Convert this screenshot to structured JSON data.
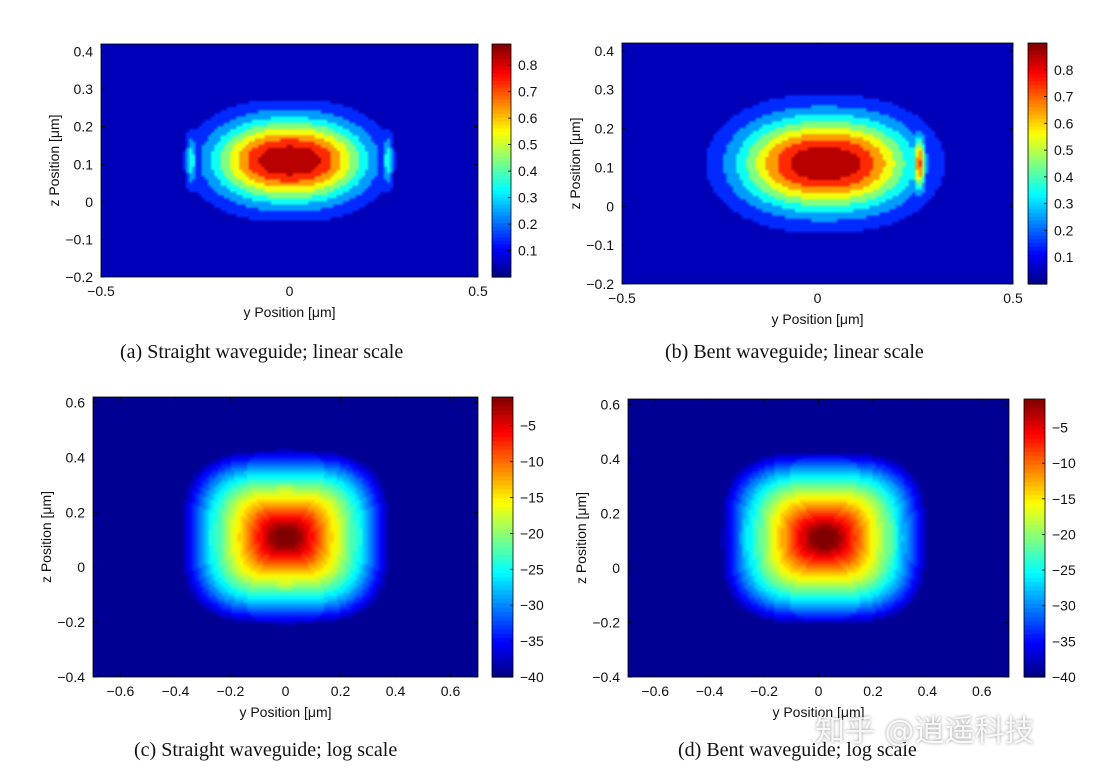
{
  "figure": {
    "watermark": "知乎 @逍遥科技",
    "panels": [
      {
        "id": "a",
        "caption": "(a) Straight waveguide; linear scale"
      },
      {
        "id": "b",
        "caption": "(b) Bent waveguide; linear scale"
      },
      {
        "id": "c",
        "caption": "(c) Straight waveguide; log scale"
      },
      {
        "id": "d",
        "caption": "(d) Bent waveguide; log scale"
      }
    ]
  },
  "chart_data": [
    {
      "type": "heatmap",
      "subtype": "filled-contour",
      "caption": "(a) Straight waveguide; linear scale",
      "xlabel": "y Position [μm]",
      "ylabel": "z Position [μm]",
      "xlim": [
        -0.5,
        0.5
      ],
      "ylim": [
        -0.2,
        0.42
      ],
      "xticks": [
        -0.5,
        0,
        0.5
      ],
      "xtick_labels": [
        "−0.5",
        "0",
        "0.5"
      ],
      "yticks": [
        -0.2,
        -0.1,
        0,
        0.1,
        0.2,
        0.3,
        0.4
      ],
      "ytick_labels": [
        "−0.2",
        "−0.1",
        "0",
        "0.1",
        "0.2",
        "0.3",
        "0.4"
      ],
      "colorbar": {
        "range": [
          0,
          0.88
        ],
        "ticks": [
          0.1,
          0.2,
          0.3,
          0.4,
          0.5,
          0.6,
          0.7,
          0.8
        ],
        "tick_labels": [
          "0.1",
          "0.2",
          "0.3",
          "0.4",
          "0.5",
          "0.6",
          "0.7",
          "0.8"
        ]
      },
      "colormap": "jet",
      "contour_lines": true,
      "field": {
        "scale": "linear",
        "peak": 0.88,
        "center": [
          0,
          0.11
        ],
        "width": 0.2,
        "height": 0.11,
        "side_lobes": [
          {
            "y": -0.26,
            "z": 0.11,
            "level": 0.35
          },
          {
            "y": 0.26,
            "z": 0.11,
            "level": 0.35
          }
        ]
      }
    },
    {
      "type": "heatmap",
      "subtype": "filled-contour",
      "caption": "(b) Bent waveguide; linear scale",
      "xlabel": "y Position [μm]",
      "ylabel": "z Position [μm]",
      "xlim": [
        -0.5,
        0.5
      ],
      "ylim": [
        -0.2,
        0.42
      ],
      "xticks": [
        -0.5,
        0,
        0.5
      ],
      "xtick_labels": [
        "−0.5",
        "0",
        "0.5"
      ],
      "yticks": [
        -0.2,
        -0.1,
        0,
        0.1,
        0.2,
        0.3,
        0.4
      ],
      "ytick_labels": [
        "−0.2",
        "−0.1",
        "0",
        "0.1",
        "0.2",
        "0.3",
        "0.4"
      ],
      "colorbar": {
        "range": [
          0,
          0.9
        ],
        "ticks": [
          0.1,
          0.2,
          0.3,
          0.4,
          0.5,
          0.6,
          0.7,
          0.8
        ],
        "tick_labels": [
          "0.1",
          "0.2",
          "0.3",
          "0.4",
          "0.5",
          "0.6",
          "0.7",
          "0.8"
        ]
      },
      "colormap": "jet",
      "contour_lines": true,
      "field": {
        "scale": "linear",
        "peak": 0.9,
        "center": [
          0.02,
          0.11
        ],
        "width": 0.22,
        "height": 0.12,
        "side_lobes": [
          {
            "y": -0.26,
            "z": 0.11,
            "level": 0.12
          },
          {
            "y": 0.26,
            "z": 0.11,
            "level": 0.72
          }
        ]
      }
    },
    {
      "type": "heatmap",
      "subtype": "filled-contour",
      "caption": "(c) Straight waveguide; log scale",
      "xlabel": "y Position [μm]",
      "ylabel": "z Position [μm]",
      "xlim": [
        -0.7,
        0.7
      ],
      "ylim": [
        -0.4,
        0.62
      ],
      "xticks": [
        -0.6,
        -0.4,
        -0.2,
        0,
        0.2,
        0.4,
        0.6
      ],
      "xtick_labels": [
        "−0.6",
        "−0.4",
        "−0.2",
        "0",
        "0.2",
        "0.4",
        "0.6"
      ],
      "yticks": [
        -0.4,
        -0.2,
        0,
        0.2,
        0.4,
        0.6
      ],
      "ytick_labels": [
        "−0.4",
        "−0.2",
        "0",
        "0.2",
        "0.4",
        "0.6"
      ],
      "colorbar": {
        "range": [
          -40,
          -1
        ],
        "ticks": [
          -5,
          -10,
          -15,
          -20,
          -25,
          -30,
          -35,
          -40
        ],
        "tick_labels": [
          "−5",
          "−10",
          "−15",
          "−20",
          "−25",
          "−30",
          "−35",
          "−40"
        ]
      },
      "colormap": "jet",
      "contour_lines": false,
      "field": {
        "scale": "log",
        "peak": -1,
        "center": [
          0,
          0.11
        ],
        "exponent": 3.2,
        "rx": 0.38,
        "rz": 0.32,
        "side_lobes": [
          {
            "y": -0.27,
            "z": 0.11
          },
          {
            "y": 0.27,
            "z": 0.11
          }
        ]
      }
    },
    {
      "type": "heatmap",
      "subtype": "filled-contour",
      "caption": "(d) Bent waveguide; log scale",
      "xlabel": "y Position [μm]",
      "ylabel": "z Position [μm]",
      "xlim": [
        -0.7,
        0.7
      ],
      "ylim": [
        -0.4,
        0.62
      ],
      "xticks": [
        -0.6,
        -0.4,
        -0.2,
        0,
        0.2,
        0.4,
        0.6
      ],
      "xtick_labels": [
        "−0.6",
        "−0.4",
        "−0.2",
        "0",
        "0.2",
        "0.4",
        "0.6"
      ],
      "yticks": [
        -0.4,
        -0.2,
        0,
        0.2,
        0.4,
        0.6
      ],
      "ytick_labels": [
        "−0.4",
        "−0.2",
        "0",
        "0.2",
        "0.4",
        "0.6"
      ],
      "colorbar": {
        "range": [
          -40,
          -1
        ],
        "ticks": [
          -5,
          -10,
          -15,
          -20,
          -25,
          -30,
          -35,
          -40
        ],
        "tick_labels": [
          "−5",
          "−10",
          "−15",
          "−20",
          "−25",
          "−30",
          "−35",
          "−40"
        ]
      },
      "colormap": "jet",
      "contour_lines": false,
      "field": {
        "scale": "log",
        "peak": -1,
        "center": [
          0.02,
          0.11
        ],
        "exponent": 3.2,
        "rx": 0.38,
        "rz": 0.32,
        "side_lobes": [
          {
            "y": -0.27,
            "z": 0.11
          },
          {
            "y": 0.27,
            "z": 0.11
          }
        ]
      }
    }
  ]
}
